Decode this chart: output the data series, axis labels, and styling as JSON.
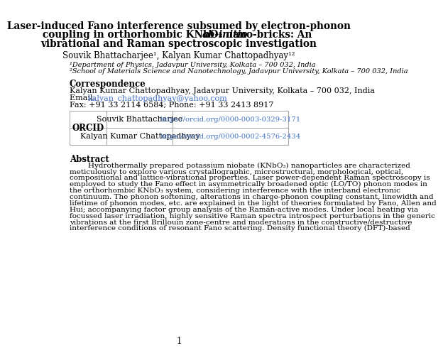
{
  "title_line1": "Laser-induced Fano interference subsumed by electron-phonon",
  "title_line2_bold": "coupling in orthorhombic KNbO₃ nano-bricks: An ",
  "title_line2_italic": "ab-initio",
  "title_line3": "vibrational and Raman spectroscopic investigation",
  "authors": "Souvik Bhattacharjee¹, Kalyan Kumar Chattopadhyay¹²",
  "affil1": "¹Department of Physics, Jadavpur University, Kolkata – 700 032, India",
  "affil2": "²School of Materials Science and Nanotechnology, Jadavpur University, Kolkata – 700 032, India",
  "corr_header": "Correspondence",
  "corr_line1": "Kalyan Kumar Chattopadhyay, Jadavpur University, Kolkata – 700 032, India",
  "corr_email_prefix": "Email: ",
  "corr_email": "kalyan_chattopadhyay@yahoo.com",
  "corr_fax": "Fax: +91 33 2114 6584; Phone: +91 33 2413 8917",
  "orcid_label": "ORCID",
  "orcid_name1": "Souvik Bhattacharjee",
  "orcid_url1": "https://orcid.org/0000-0003-0329-3171",
  "orcid_name2": "Kalyan Kumar Chattopadhyay",
  "orcid_url2": "https://orcid.org/0000-0002-4576-2434",
  "abstract_header": "Abstract",
  "abstract_lines": [
    "        Hydrothermally prepared potassium niobate (KNbO₃) nanoparticles are characterized",
    "meticulously to explore various crystallographic, microstructural, morphological, optical,",
    "compositional and lattice-vibrational properties. Laser power-dependent Raman spectroscopy is",
    "employed to study the Fano effect in asymmetrically broadened optic (LO/TO) phonon modes in",
    "the orthorhombic KNbO₃ system, considering interference with the interband electronic",
    "continuum. The phonon softening, alterations in charge-phonon coupling constant, linewidth and",
    "lifetime of phonon modes, etc. are explained in the light of theories formulated by Fano, Allen and",
    "Hui; accompanying factor group analysis of the Raman-active modes. Under local heating via",
    "focussed laser irradiation, highly sensitive Raman spectra introspect perturbations in the generic",
    "vibrations at the first Brillouin zone-centre and moderations in the constructive/destructive",
    "interference conditions of resonant Fano scattering. Density functional theory (DFT)-based"
  ],
  "page_number": "1",
  "bg_color": "#ffffff",
  "title_color": "#000000",
  "link_color": "#4472C4",
  "text_color": "#000000"
}
